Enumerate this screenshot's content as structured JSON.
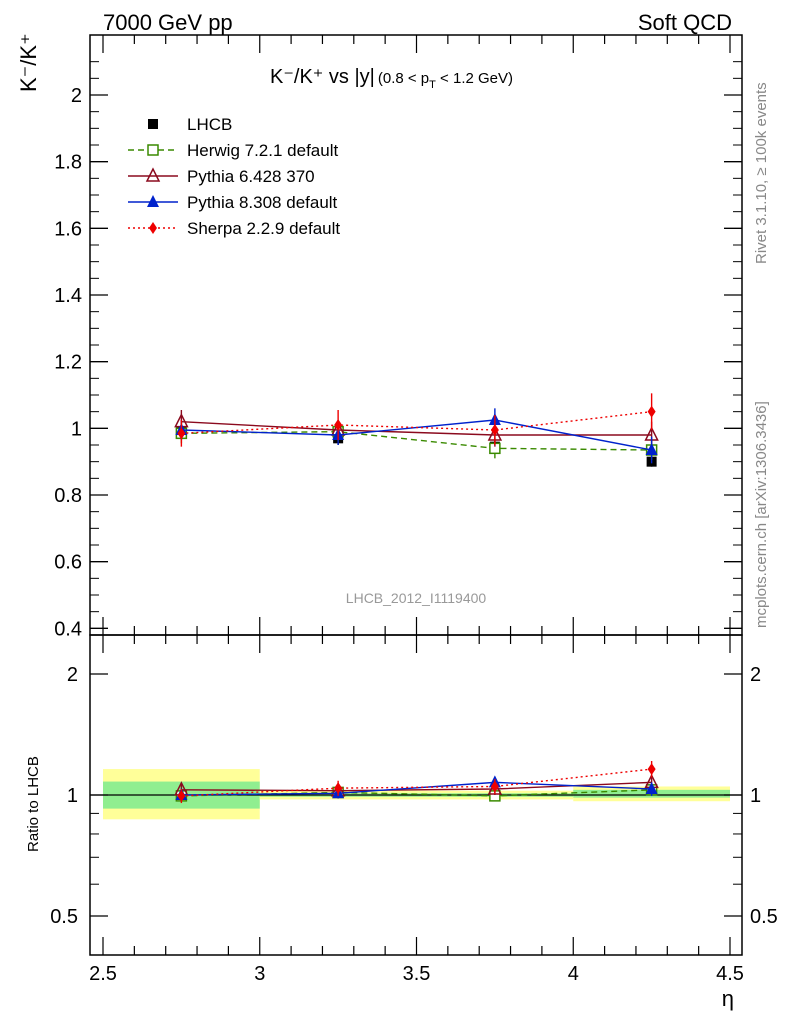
{
  "header": {
    "left": "7000 GeV pp",
    "right": "Soft QCD"
  },
  "title": {
    "main": "K⁻/K⁺ vs |y|",
    "sub": "(0.8 < p",
    "sub_index": "T",
    "sub_end": " < 1.2 GeV)"
  },
  "side_labels": {
    "rivet": "Rivet 3.1.10, ≥ 100k events",
    "mcplots": "mcplots.cern.ch [arXiv:1306.3436]"
  },
  "watermark": "LHCB_2012_I1119400",
  "colors": {
    "data": "#000000",
    "herwig": "#3a8a00",
    "pythia6": "#8b0a1e",
    "pythia8": "#0022cc",
    "sherpa": "#ee0000",
    "band_inner": "#90ee90",
    "band_outer": "#ffff99"
  },
  "chart_data": [
    {
      "type": "scatter",
      "panel": "main",
      "xlabel": "",
      "ylabel": "K⁻/K⁺",
      "xlim": [
        2.5,
        4.5
      ],
      "ylim": [
        0.38,
        2.18
      ],
      "yticks": [
        0.4,
        0.6,
        0.8,
        1,
        1.2,
        1.4,
        1.6,
        1.8,
        2
      ],
      "ytick_labels": [
        "0.4",
        "0.6",
        "0.8",
        "1",
        "1.2",
        "1.4",
        "1.6",
        "1.8",
        "2"
      ],
      "legend_position": "top-left",
      "x": [
        2.75,
        3.25,
        3.75,
        4.25
      ],
      "series": [
        {
          "name": "LHCB",
          "key": "data",
          "marker": "square-filled",
          "line": "none",
          "values": [
            0.99,
            0.97,
            0.945,
            0.9
          ],
          "errors": [
            0.02,
            0.02,
            0.02,
            0.015
          ]
        },
        {
          "name": "Herwig 7.2.1 default",
          "key": "herwig",
          "marker": "square-open",
          "line": "dashed",
          "values": [
            0.985,
            0.99,
            0.94,
            0.935
          ],
          "errors": [
            0.03,
            0.03,
            0.03,
            0.03
          ]
        },
        {
          "name": "Pythia 6.428 370",
          "key": "pythia6",
          "marker": "triangle-open",
          "line": "solid",
          "values": [
            1.02,
            0.995,
            0.98,
            0.98
          ],
          "errors": [
            0.035,
            0.03,
            0.035,
            0.04
          ]
        },
        {
          "name": "Pythia 8.308 default",
          "key": "pythia8",
          "marker": "triangle-filled",
          "line": "solid",
          "values": [
            0.995,
            0.98,
            1.025,
            0.935
          ],
          "errors": [
            0.03,
            0.03,
            0.035,
            0.04
          ]
        },
        {
          "name": "Sherpa 2.2.9 default",
          "key": "sherpa",
          "marker": "diamond-filled",
          "line": "dotted",
          "values": [
            0.985,
            1.01,
            0.995,
            1.05
          ],
          "errors": [
            0.04,
            0.045,
            0.045,
            0.055
          ]
        }
      ]
    },
    {
      "type": "scatter",
      "panel": "ratio",
      "xlabel": "η",
      "ylabel": "Ratio to LHCB",
      "xlim": [
        2.5,
        4.5
      ],
      "ylim": [
        0.4,
        2.5
      ],
      "yscale": "log",
      "yticks": [
        0.5,
        1,
        2
      ],
      "ytick_labels": [
        "0.5",
        "1",
        "2"
      ],
      "xticks": [
        2.5,
        3,
        3.5,
        4,
        4.5
      ],
      "xtick_labels": [
        "2.5",
        "3",
        "3.5",
        "4",
        "4.5"
      ],
      "x": [
        2.75,
        3.25,
        3.75,
        4.25
      ],
      "bins": [
        [
          2.5,
          3.0
        ],
        [
          3.0,
          3.5
        ],
        [
          3.5,
          4.0
        ],
        [
          4.0,
          4.5
        ]
      ],
      "band_inner": [
        [
          0.925,
          1.08
        ],
        [
          0.99,
          1.01
        ],
        [
          0.99,
          1.01
        ],
        [
          0.985,
          1.03
        ]
      ],
      "band_outer": [
        [
          0.87,
          1.16
        ],
        [
          0.975,
          1.025
        ],
        [
          0.975,
          1.025
        ],
        [
          0.965,
          1.05
        ]
      ],
      "series": [
        {
          "name": "Herwig 7.2.1 default",
          "key": "herwig",
          "values": [
            0.995,
            1.015,
            0.995,
            1.03
          ],
          "errors": [
            0.03,
            0.03,
            0.03,
            0.03
          ]
        },
        {
          "name": "Pythia 6.428 370",
          "key": "pythia6",
          "values": [
            1.03,
            1.025,
            1.035,
            1.075
          ],
          "errors": [
            0.035,
            0.03,
            0.035,
            0.04
          ]
        },
        {
          "name": "Pythia 8.308 default",
          "key": "pythia8",
          "values": [
            1.0,
            1.01,
            1.075,
            1.035
          ],
          "errors": [
            0.03,
            0.03,
            0.035,
            0.04
          ]
        },
        {
          "name": "Sherpa 2.2.9 default",
          "key": "sherpa",
          "values": [
            0.995,
            1.04,
            1.05,
            1.16
          ],
          "errors": [
            0.04,
            0.045,
            0.045,
            0.055
          ]
        }
      ]
    }
  ]
}
